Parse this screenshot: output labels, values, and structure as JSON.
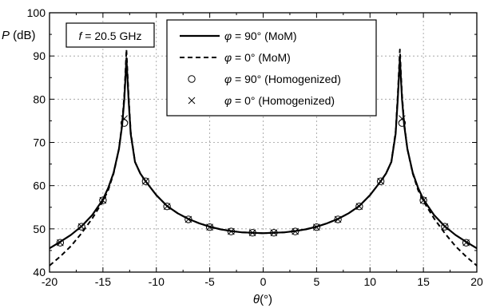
{
  "chart_data": {
    "type": "line",
    "title": "",
    "xlabel": "θ(°)",
    "ylabel": "P (dB)",
    "xlim": [
      -20,
      20
    ],
    "ylim": [
      40,
      100
    ],
    "xticks": [
      -20,
      -15,
      -10,
      -5,
      0,
      5,
      10,
      15,
      20
    ],
    "yticks": [
      40,
      50,
      60,
      70,
      80,
      90,
      100
    ],
    "grid": true,
    "legend_position": "top-center",
    "annotation": "f = 20.5 GHz",
    "series": [
      {
        "name": "φ = 90° (MoM)",
        "style": "solid",
        "marker": "none",
        "x": [
          -20,
          -19,
          -18,
          -17,
          -16,
          -15,
          -14.5,
          -14,
          -13.5,
          -13.2,
          -13,
          -12.9,
          -12.8,
          -12.6,
          -12.4,
          -12,
          -11.5,
          -11,
          -10,
          -9,
          -8,
          -7,
          -6,
          -5,
          -4,
          -3,
          -2,
          -1,
          0,
          1,
          2,
          3,
          4,
          5,
          6,
          7,
          8,
          9,
          10,
          11,
          11.5,
          12,
          12.4,
          12.6,
          12.8,
          12.9,
          13,
          13.2,
          13.5,
          14,
          14.5,
          15,
          16,
          17,
          18,
          19,
          20
        ],
        "y": [
          45.5,
          47.0,
          48.6,
          50.6,
          53.2,
          56.8,
          59.5,
          63.0,
          68.5,
          74.0,
          80.0,
          84.5,
          89.5,
          80.0,
          72.0,
          65.5,
          62.8,
          61.0,
          57.8,
          55.3,
          53.6,
          52.3,
          51.3,
          50.5,
          49.9,
          49.5,
          49.2,
          49.1,
          49.0,
          49.1,
          49.2,
          49.5,
          49.9,
          50.5,
          51.3,
          52.3,
          53.6,
          55.3,
          57.8,
          61.0,
          62.8,
          65.5,
          72.0,
          80.0,
          89.5,
          84.5,
          80.0,
          74.0,
          68.5,
          63.0,
          59.5,
          56.8,
          53.2,
          50.6,
          48.6,
          47.0,
          45.5
        ]
      },
      {
        "name": "φ = 0° (MoM)",
        "style": "dashed",
        "marker": "none",
        "x": [
          -20,
          -19,
          -18,
          -17,
          -16,
          -15,
          -14.5,
          -14,
          -13.5,
          -13.2,
          -13,
          -12.9,
          -12.8,
          -12.6,
          -12.4,
          -12,
          -11.5,
          -11,
          -10,
          -9,
          -8,
          -7,
          -6,
          -5,
          -4,
          -3,
          -2,
          -1,
          0,
          1,
          2,
          3,
          4,
          5,
          6,
          7,
          8,
          9,
          10,
          11,
          11.5,
          12,
          12.4,
          12.6,
          12.8,
          12.9,
          13,
          13.2,
          13.5,
          14,
          14.5,
          15,
          16,
          17,
          18,
          19,
          20
        ],
        "y": [
          41.5,
          43.6,
          46.0,
          49.0,
          52.4,
          56.4,
          59.0,
          62.8,
          68.5,
          74.5,
          81.0,
          86.0,
          91.5,
          81.0,
          72.5,
          65.5,
          62.8,
          61.0,
          57.8,
          55.3,
          53.6,
          52.3,
          51.3,
          50.5,
          49.9,
          49.5,
          49.2,
          49.1,
          49.0,
          49.1,
          49.2,
          49.5,
          49.9,
          50.5,
          51.3,
          52.3,
          53.6,
          55.3,
          57.8,
          61.0,
          62.8,
          65.5,
          72.5,
          81.0,
          91.5,
          86.0,
          81.0,
          74.5,
          68.5,
          62.8,
          59.0,
          56.4,
          52.4,
          49.0,
          46.0,
          43.6,
          41.5
        ]
      },
      {
        "name": "φ = 90° (Homogenized)",
        "style": "none",
        "marker": "circle",
        "x": [
          -19,
          -17,
          -15,
          -13,
          -11,
          -9,
          -7,
          -5,
          -3,
          -1,
          1,
          3,
          5,
          7,
          9,
          11,
          13,
          15,
          17,
          19
        ],
        "y": [
          46.8,
          50.5,
          56.6,
          74.5,
          61.0,
          55.2,
          52.2,
          50.4,
          49.4,
          49.1,
          49.1,
          49.4,
          50.4,
          52.2,
          55.2,
          61.0,
          74.5,
          56.6,
          50.5,
          46.8
        ]
      },
      {
        "name": "φ = 0° (Homogenized)",
        "style": "none",
        "marker": "x",
        "x": [
          -19,
          -17,
          -15,
          -13,
          -11,
          -9,
          -7,
          -5,
          -3,
          -1,
          1,
          3,
          5,
          7,
          9,
          11,
          13,
          15,
          17,
          19
        ],
        "y": [
          46.8,
          50.5,
          56.6,
          75.5,
          61.0,
          55.2,
          52.2,
          50.4,
          49.4,
          49.1,
          49.1,
          49.4,
          50.4,
          52.2,
          55.2,
          61.0,
          75.5,
          56.6,
          50.5,
          46.8
        ]
      }
    ]
  }
}
